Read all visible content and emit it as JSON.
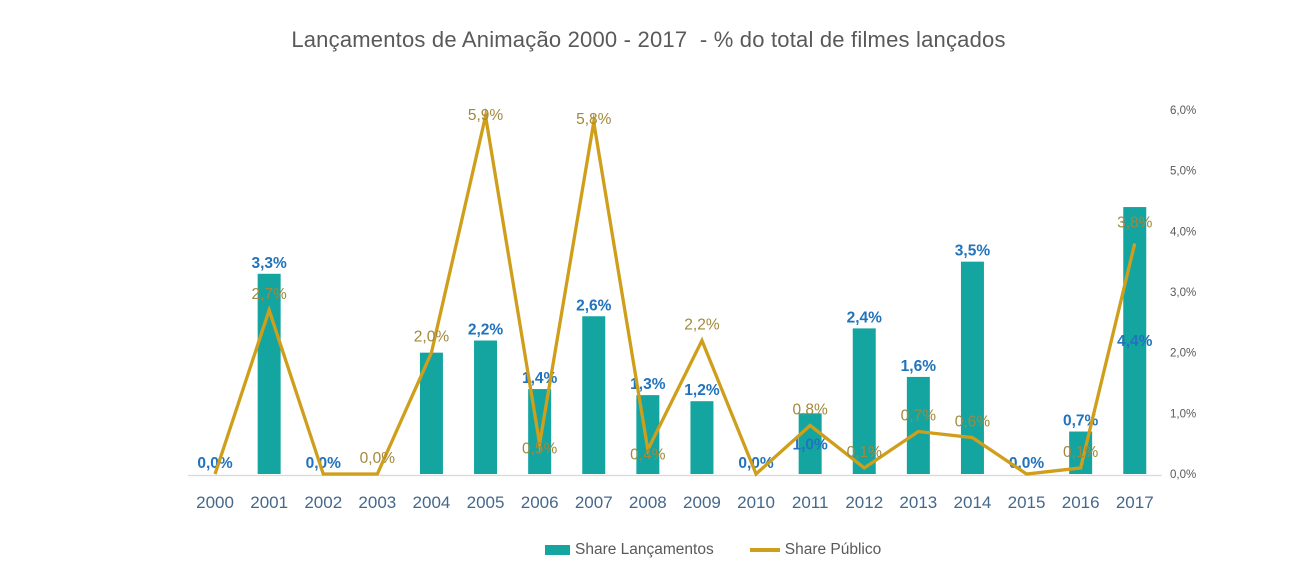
{
  "chart_data": {
    "type": "combo-bar-line",
    "title": "Lançamentos de Animação 2000 - 2017  - % do total de filmes lançados",
    "categories": [
      "2000",
      "2001",
      "2002",
      "2003",
      "2004",
      "2005",
      "2006",
      "2007",
      "2008",
      "2009",
      "2010",
      "2011",
      "2012",
      "2013",
      "2014",
      "2015",
      "2016",
      "2017"
    ],
    "series": [
      {
        "name": "Share Lançamentos",
        "type": "bar",
        "color": "#14A5A1",
        "values": [
          0.0,
          3.3,
          0.0,
          0.0,
          2.0,
          2.2,
          1.4,
          2.6,
          1.3,
          1.2,
          0.0,
          1.0,
          2.4,
          1.6,
          3.5,
          0.0,
          0.7,
          4.4
        ],
        "labels": [
          "0,0%",
          "3,3%",
          "0,0%",
          null,
          null,
          "2,2%",
          "1,4%",
          "2,6%",
          "1,3%",
          "1,2%",
          "0,0%",
          "1,0%",
          "2,4%",
          "1,6%",
          "3,5%",
          "0,0%",
          "0,7%",
          "4,4%"
        ]
      },
      {
        "name": "Share Público",
        "type": "line",
        "color": "#CF9E1B",
        "values": [
          0.0,
          2.7,
          0.0,
          0.0,
          2.0,
          5.9,
          0.5,
          5.8,
          0.4,
          2.2,
          0.0,
          0.8,
          0.1,
          0.7,
          0.6,
          0.0,
          0.1,
          3.8
        ],
        "labels": [
          null,
          "2,7%",
          null,
          "0,0%",
          "2,0%",
          "5,9%",
          "0,5%",
          "5,8%",
          "0,4%",
          "2,2%",
          null,
          "0,8%",
          "0,1%",
          "0,7%",
          "0,6%",
          null,
          "0,1%",
          "3,8%"
        ]
      }
    ],
    "y_axis": {
      "side": "right",
      "min": 0,
      "max": 6,
      "tick_labels": [
        "0,0%",
        "1,0%",
        "2,0%",
        "3,0%",
        "4,0%",
        "5,0%",
        "6,0%"
      ],
      "grid": false
    },
    "legend": {
      "position": "bottom",
      "entries": [
        "Share Lançamentos",
        "Share Público"
      ]
    }
  },
  "colors": {
    "bar": "#14A5A1",
    "line": "#CF9E1B",
    "bar_label": "#2073BC",
    "line_label": "#A1883B",
    "axis_text": "#595959",
    "category_text": "#44688C",
    "title_text": "#595959",
    "axis_line": "#D9D9D9",
    "background": "#FFFFFF"
  }
}
